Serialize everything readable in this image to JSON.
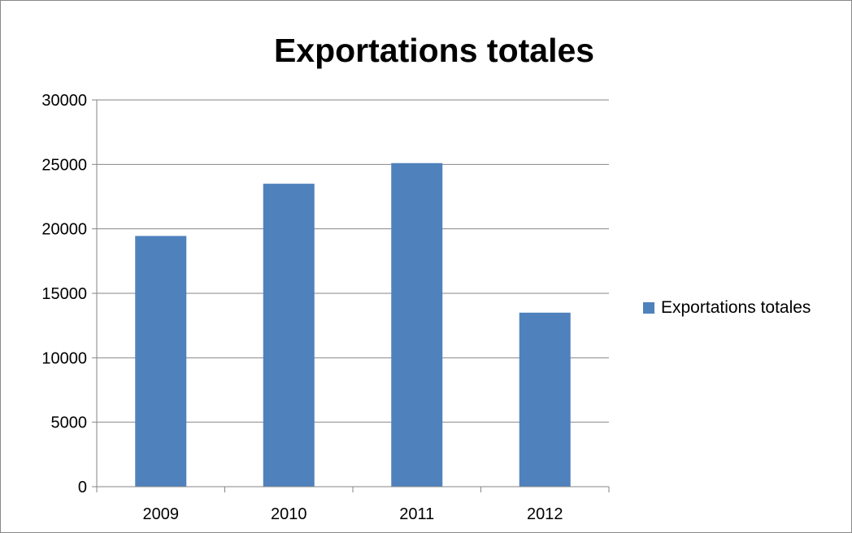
{
  "chart_data": {
    "type": "bar",
    "title": "Exportations totales",
    "categories": [
      "2009",
      "2010",
      "2011",
      "2012"
    ],
    "series": [
      {
        "name": "Exportations totales",
        "values": [
          19450,
          23500,
          25100,
          13500
        ],
        "color": "#4f81bd"
      }
    ],
    "ylim": [
      0,
      30000
    ],
    "yticks": [
      0,
      5000,
      10000,
      15000,
      20000,
      25000,
      30000
    ],
    "grid": true,
    "legend": "right"
  }
}
